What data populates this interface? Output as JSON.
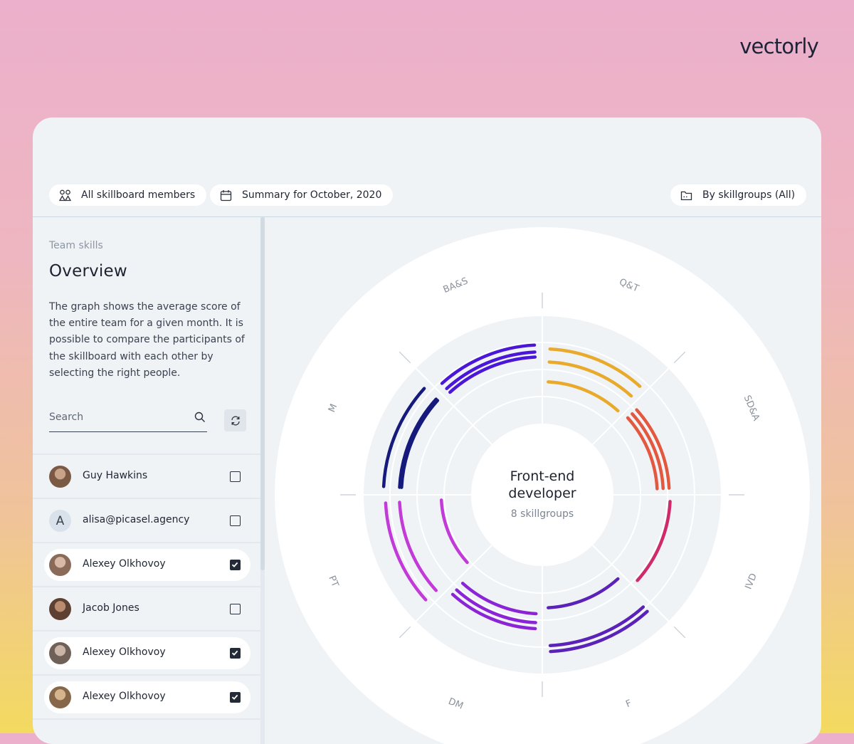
{
  "brand": {
    "name": "vectorly"
  },
  "toolbar": {
    "members_chip": "All skillboard members",
    "summary_chip": "Summary for October, 2020",
    "group_chip": "By skillgroups (All)"
  },
  "sidebar": {
    "eyebrow": "Team skills",
    "title": "Overview",
    "description": "The graph shows the average score of the entire team for a given month. It is possible to compare the participants of the skillboard with each other by selecting the right people.",
    "search_placeholder": "Search",
    "members": [
      {
        "name": "Guy Hawkins",
        "checked": false,
        "avatar": "photo"
      },
      {
        "name": "alisa@picasel.agency",
        "checked": false,
        "avatar": "letter",
        "initial": "A"
      },
      {
        "name": "Alexey Olkhovoy",
        "checked": true,
        "avatar": "photo"
      },
      {
        "name": "Jacob Jones",
        "checked": false,
        "avatar": "photo"
      },
      {
        "name": "Alexey Olkhovoy",
        "checked": true,
        "avatar": "photo"
      },
      {
        "name": "Alexey Olkhovoy",
        "checked": true,
        "avatar": "photo"
      }
    ]
  },
  "chart_data": {
    "type": "radial-bar",
    "center_title": "Front-end developer",
    "center_subtitle": "8 skillgroups",
    "categories": [
      "Q&T",
      "SD&A",
      "IVD",
      "F",
      "DM",
      "PT",
      "M",
      "BA&S"
    ],
    "category_colors": [
      "#e9aa2c",
      "#e2593f",
      "#cf2a6c",
      "#5a22b8",
      "#8a24d6",
      "#c23bd8",
      "#151a7c",
      "#4a16d8"
    ],
    "series_levels": [
      [
        0.75,
        0.62,
        0.42
      ],
      [
        0.44,
        0.5,
        0.56
      ],
      [
        0.57
      ],
      [
        0.42,
        0.8,
        0.86
      ],
      [
        0.48,
        0.57,
        0.63
      ],
      [
        0.72,
        0.86,
        0.3
      ],
      [
        0.88,
        0.72,
        0.7
      ],
      [
        0.67,
        0.72,
        0.79
      ]
    ]
  }
}
